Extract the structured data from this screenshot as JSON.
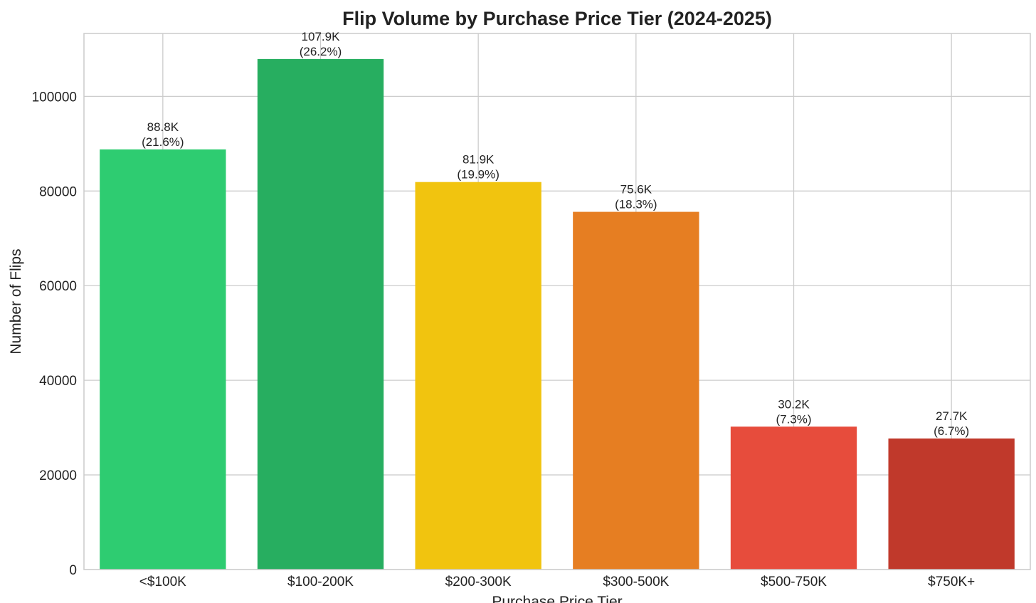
{
  "chart_data": {
    "type": "bar",
    "title": "Flip Volume by Purchase Price Tier (2024-2025)",
    "xlabel": "Purchase Price Tier",
    "ylabel": "Number of Flips",
    "categories": [
      "<$100K",
      "$100-200K",
      "$200-300K",
      "$300-500K",
      "$500-750K",
      "$750K+"
    ],
    "values": [
      88800,
      107900,
      81900,
      75600,
      30200,
      27700
    ],
    "value_labels": [
      "88.8K",
      "107.9K",
      "81.9K",
      "75.6K",
      "30.2K",
      "27.7K"
    ],
    "percent_labels": [
      "(21.6%)",
      "(26.2%)",
      "(19.9%)",
      "(18.3%)",
      "(7.3%)",
      "(6.7%)"
    ],
    "colors": [
      "#2ecc71",
      "#27ae60",
      "#f1c40f",
      "#e67e22",
      "#e74c3c",
      "#c0392b"
    ],
    "ylim": [
      0,
      113300
    ],
    "yticks": [
      0,
      20000,
      40000,
      60000,
      80000,
      100000
    ],
    "ytick_labels": [
      "0",
      "20000",
      "40000",
      "60000",
      "80000",
      "100000"
    ],
    "grid": true
  }
}
